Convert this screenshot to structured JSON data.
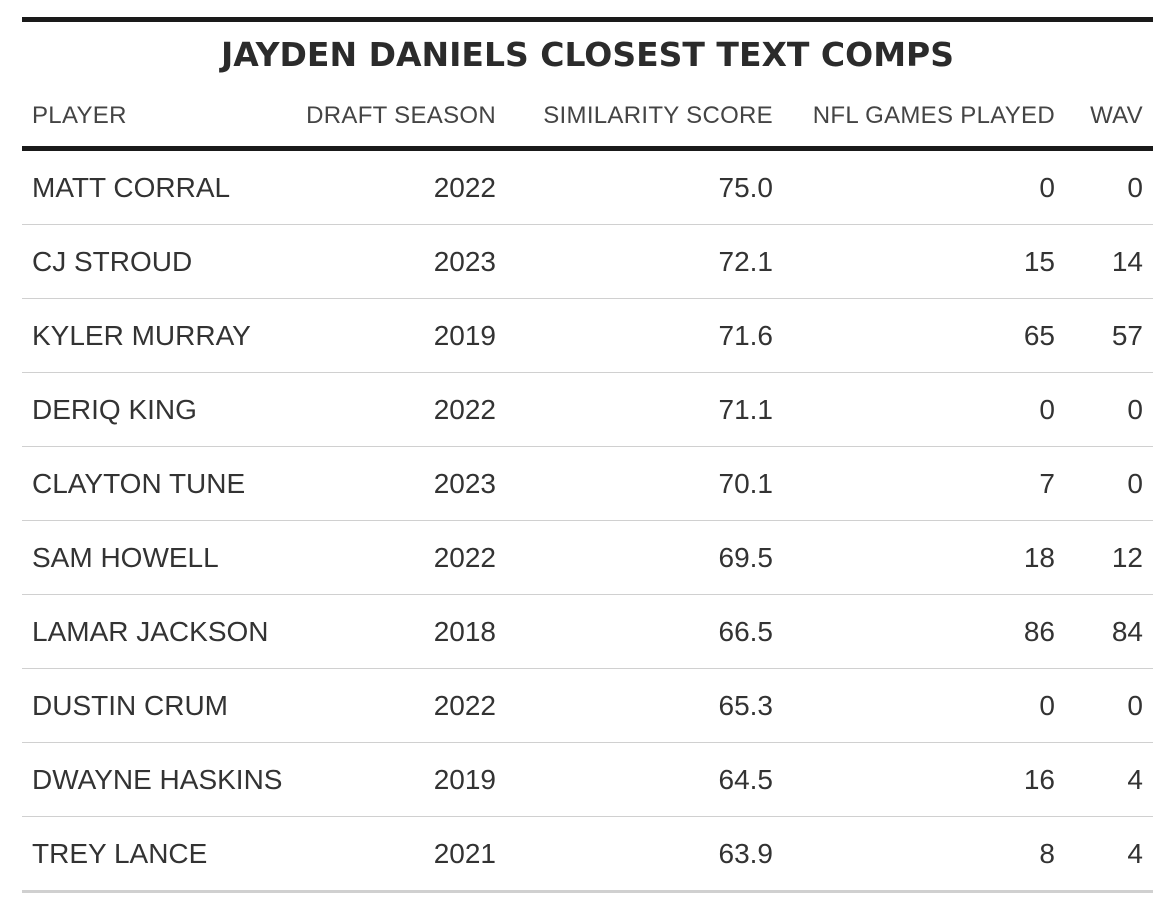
{
  "title": "JAYDEN DANIELS CLOSEST TEXT COMPS",
  "columns": {
    "player": "PLAYER",
    "draft_season": "DRAFT SEASON",
    "similarity_score": "SIMILARITY SCORE",
    "nfl_games_played": "NFL GAMES PLAYED",
    "wav": "WAV"
  },
  "rows": [
    {
      "player": "MATT CORRAL",
      "draft_season": "2022",
      "similarity_score": "75.0",
      "nfl_games_played": "0",
      "wav": "0"
    },
    {
      "player": "CJ STROUD",
      "draft_season": "2023",
      "similarity_score": "72.1",
      "nfl_games_played": "15",
      "wav": "14"
    },
    {
      "player": "KYLER MURRAY",
      "draft_season": "2019",
      "similarity_score": "71.6",
      "nfl_games_played": "65",
      "wav": "57"
    },
    {
      "player": "DERIQ KING",
      "draft_season": "2022",
      "similarity_score": "71.1",
      "nfl_games_played": "0",
      "wav": "0"
    },
    {
      "player": "CLAYTON TUNE",
      "draft_season": "2023",
      "similarity_score": "70.1",
      "nfl_games_played": "7",
      "wav": "0"
    },
    {
      "player": "SAM HOWELL",
      "draft_season": "2022",
      "similarity_score": "69.5",
      "nfl_games_played": "18",
      "wav": "12"
    },
    {
      "player": "LAMAR JACKSON",
      "draft_season": "2018",
      "similarity_score": "66.5",
      "nfl_games_played": "86",
      "wav": "84"
    },
    {
      "player": "DUSTIN CRUM",
      "draft_season": "2022",
      "similarity_score": "65.3",
      "nfl_games_played": "0",
      "wav": "0"
    },
    {
      "player": "DWAYNE HASKINS",
      "draft_season": "2019",
      "similarity_score": "64.5",
      "nfl_games_played": "16",
      "wav": "4"
    },
    {
      "player": "TREY LANCE",
      "draft_season": "2021",
      "similarity_score": "63.9",
      "nfl_games_played": "8",
      "wav": "4"
    }
  ],
  "chart_data": {
    "type": "table",
    "title": "JAYDEN DANIELS CLOSEST TEXT COMPS",
    "columns": [
      "PLAYER",
      "DRAFT SEASON",
      "SIMILARITY SCORE",
      "NFL GAMES PLAYED",
      "WAV"
    ],
    "rows": [
      [
        "MATT CORRAL",
        2022,
        75.0,
        0,
        0
      ],
      [
        "CJ STROUD",
        2023,
        72.1,
        15,
        14
      ],
      [
        "KYLER MURRAY",
        2019,
        71.6,
        65,
        57
      ],
      [
        "DERIQ KING",
        2022,
        71.1,
        0,
        0
      ],
      [
        "CLAYTON TUNE",
        2023,
        70.1,
        7,
        0
      ],
      [
        "SAM HOWELL",
        2022,
        69.5,
        18,
        12
      ],
      [
        "LAMAR JACKSON",
        2018,
        66.5,
        86,
        84
      ],
      [
        "DUSTIN CRUM",
        2022,
        65.3,
        0,
        0
      ],
      [
        "DWAYNE HASKINS",
        2019,
        64.5,
        16,
        4
      ],
      [
        "TREY LANCE",
        2021,
        63.9,
        8,
        4
      ]
    ]
  }
}
